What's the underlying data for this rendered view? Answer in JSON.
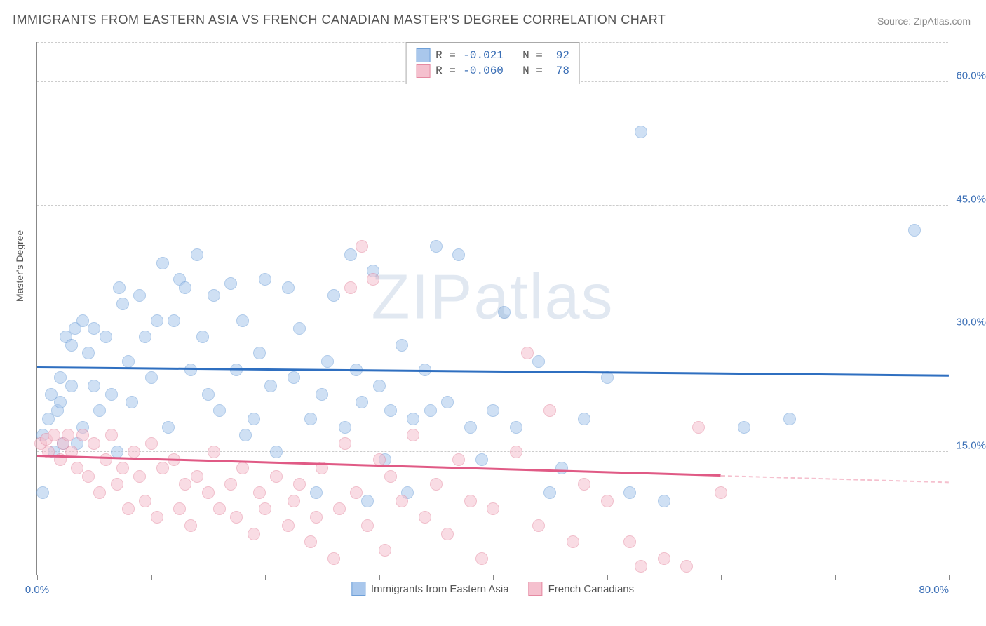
{
  "title": "IMMIGRANTS FROM EASTERN ASIA VS FRENCH CANADIAN MASTER'S DEGREE CORRELATION CHART",
  "source_label": "Source: ",
  "source_link": "ZipAtlas.com",
  "watermark": "ZIPatlas",
  "chart": {
    "type": "scatter",
    "xlim": [
      0,
      80
    ],
    "ylim": [
      0,
      65
    ],
    "x_min_label": "0.0%",
    "x_max_label": "80.0%",
    "x_ticks": [
      0,
      10,
      20,
      30,
      40,
      50,
      60,
      70,
      80
    ],
    "y_gridlines": [
      15,
      30,
      45,
      60
    ],
    "y_labels": [
      "15.0%",
      "30.0%",
      "45.0%",
      "60.0%"
    ],
    "y_axis_label": "Master's Degree",
    "background_color": "#ffffff",
    "grid_color": "#cccccc",
    "axis_color": "#888888",
    "tick_label_color": "#3b6fb6",
    "marker_radius": 9,
    "marker_opacity": 0.55,
    "series": [
      {
        "name": "Immigrants from Eastern Asia",
        "fill": "#a9c7ec",
        "stroke": "#6fa0d8",
        "line_color": "#2f6fc0",
        "R": "-0.021",
        "N": "92",
        "trend": {
          "x1": 0,
          "y1": 25.2,
          "x2": 80,
          "y2": 24.2,
          "dash_from_x": 80
        },
        "points": [
          [
            0.5,
            10
          ],
          [
            0.5,
            17
          ],
          [
            1,
            19
          ],
          [
            1.2,
            22
          ],
          [
            1.5,
            15
          ],
          [
            1.8,
            20
          ],
          [
            2,
            21
          ],
          [
            2,
            24
          ],
          [
            2.3,
            16
          ],
          [
            2.5,
            29
          ],
          [
            3,
            28
          ],
          [
            3,
            23
          ],
          [
            3.3,
            30
          ],
          [
            3.5,
            16
          ],
          [
            4,
            18
          ],
          [
            4,
            31
          ],
          [
            4.5,
            27
          ],
          [
            5,
            30
          ],
          [
            5,
            23
          ],
          [
            5.5,
            20
          ],
          [
            6,
            29
          ],
          [
            6.5,
            22
          ],
          [
            7,
            15
          ],
          [
            7.2,
            35
          ],
          [
            7.5,
            33
          ],
          [
            8,
            26
          ],
          [
            8.3,
            21
          ],
          [
            9,
            34
          ],
          [
            9.5,
            29
          ],
          [
            10,
            24
          ],
          [
            10.5,
            31
          ],
          [
            11,
            38
          ],
          [
            11.5,
            18
          ],
          [
            12,
            31
          ],
          [
            12.5,
            36
          ],
          [
            13,
            35
          ],
          [
            13.5,
            25
          ],
          [
            14,
            39
          ],
          [
            14.5,
            29
          ],
          [
            15,
            22
          ],
          [
            15.5,
            34
          ],
          [
            16,
            20
          ],
          [
            17,
            35.5
          ],
          [
            17.5,
            25
          ],
          [
            18,
            31
          ],
          [
            18.3,
            17
          ],
          [
            19,
            19
          ],
          [
            19.5,
            27
          ],
          [
            20,
            36
          ],
          [
            20.5,
            23
          ],
          [
            21,
            15
          ],
          [
            22,
            35
          ],
          [
            22.5,
            24
          ],
          [
            23,
            30
          ],
          [
            24,
            19
          ],
          [
            24.5,
            10
          ],
          [
            25,
            22
          ],
          [
            25.5,
            26
          ],
          [
            26,
            34
          ],
          [
            27,
            18
          ],
          [
            27.5,
            39
          ],
          [
            28,
            25
          ],
          [
            28.5,
            21
          ],
          [
            29,
            9
          ],
          [
            29.5,
            37
          ],
          [
            30,
            23
          ],
          [
            30.5,
            14
          ],
          [
            31,
            20
          ],
          [
            32,
            28
          ],
          [
            32.5,
            10
          ],
          [
            33,
            19
          ],
          [
            34,
            25
          ],
          [
            34.5,
            20
          ],
          [
            35,
            40
          ],
          [
            36,
            21
          ],
          [
            37,
            39
          ],
          [
            38,
            18
          ],
          [
            39,
            14
          ],
          [
            40,
            20
          ],
          [
            41,
            32
          ],
          [
            42,
            18
          ],
          [
            44,
            26
          ],
          [
            45,
            10
          ],
          [
            46,
            13
          ],
          [
            48,
            19
          ],
          [
            50,
            24
          ],
          [
            52,
            10
          ],
          [
            53,
            54
          ],
          [
            55,
            9
          ],
          [
            62,
            18
          ],
          [
            66,
            19
          ],
          [
            77,
            42
          ]
        ]
      },
      {
        "name": "French Canadians",
        "fill": "#f5c0ce",
        "stroke": "#e58aa2",
        "line_color": "#e05a85",
        "R": "-0.060",
        "N": "78",
        "trend": {
          "x1": 0,
          "y1": 14.4,
          "x2": 60,
          "y2": 12.0,
          "dash_from_x": 60
        },
        "points": [
          [
            0.3,
            16
          ],
          [
            0.8,
            16.5
          ],
          [
            1,
            15
          ],
          [
            1.5,
            17
          ],
          [
            2,
            14
          ],
          [
            2.3,
            16
          ],
          [
            2.7,
            17
          ],
          [
            3,
            15
          ],
          [
            3.5,
            13
          ],
          [
            4,
            17
          ],
          [
            4.5,
            12
          ],
          [
            5,
            16
          ],
          [
            5.5,
            10
          ],
          [
            6,
            14
          ],
          [
            6.5,
            17
          ],
          [
            7,
            11
          ],
          [
            7.5,
            13
          ],
          [
            8,
            8
          ],
          [
            8.5,
            15
          ],
          [
            9,
            12
          ],
          [
            9.5,
            9
          ],
          [
            10,
            16
          ],
          [
            10.5,
            7
          ],
          [
            11,
            13
          ],
          [
            12,
            14
          ],
          [
            12.5,
            8
          ],
          [
            13,
            11
          ],
          [
            13.5,
            6
          ],
          [
            14,
            12
          ],
          [
            15,
            10
          ],
          [
            15.5,
            15
          ],
          [
            16,
            8
          ],
          [
            17,
            11
          ],
          [
            17.5,
            7
          ],
          [
            18,
            13
          ],
          [
            19,
            5
          ],
          [
            19.5,
            10
          ],
          [
            20,
            8
          ],
          [
            21,
            12
          ],
          [
            22,
            6
          ],
          [
            22.5,
            9
          ],
          [
            23,
            11
          ],
          [
            24,
            4
          ],
          [
            24.5,
            7
          ],
          [
            25,
            13
          ],
          [
            26,
            2
          ],
          [
            26.5,
            8
          ],
          [
            27,
            16
          ],
          [
            27.5,
            35
          ],
          [
            28,
            10
          ],
          [
            28.5,
            40
          ],
          [
            29,
            6
          ],
          [
            29.5,
            36
          ],
          [
            30,
            14
          ],
          [
            30.5,
            3
          ],
          [
            31,
            12
          ],
          [
            32,
            9
          ],
          [
            33,
            17
          ],
          [
            34,
            7
          ],
          [
            35,
            11
          ],
          [
            36,
            5
          ],
          [
            37,
            14
          ],
          [
            38,
            9
          ],
          [
            39,
            2
          ],
          [
            40,
            8
          ],
          [
            42,
            15
          ],
          [
            43,
            27
          ],
          [
            44,
            6
          ],
          [
            45,
            20
          ],
          [
            47,
            4
          ],
          [
            48,
            11
          ],
          [
            50,
            9
          ],
          [
            52,
            4
          ],
          [
            53,
            1
          ],
          [
            55,
            2
          ],
          [
            57,
            1
          ],
          [
            58,
            18
          ],
          [
            60,
            10
          ]
        ]
      }
    ]
  }
}
